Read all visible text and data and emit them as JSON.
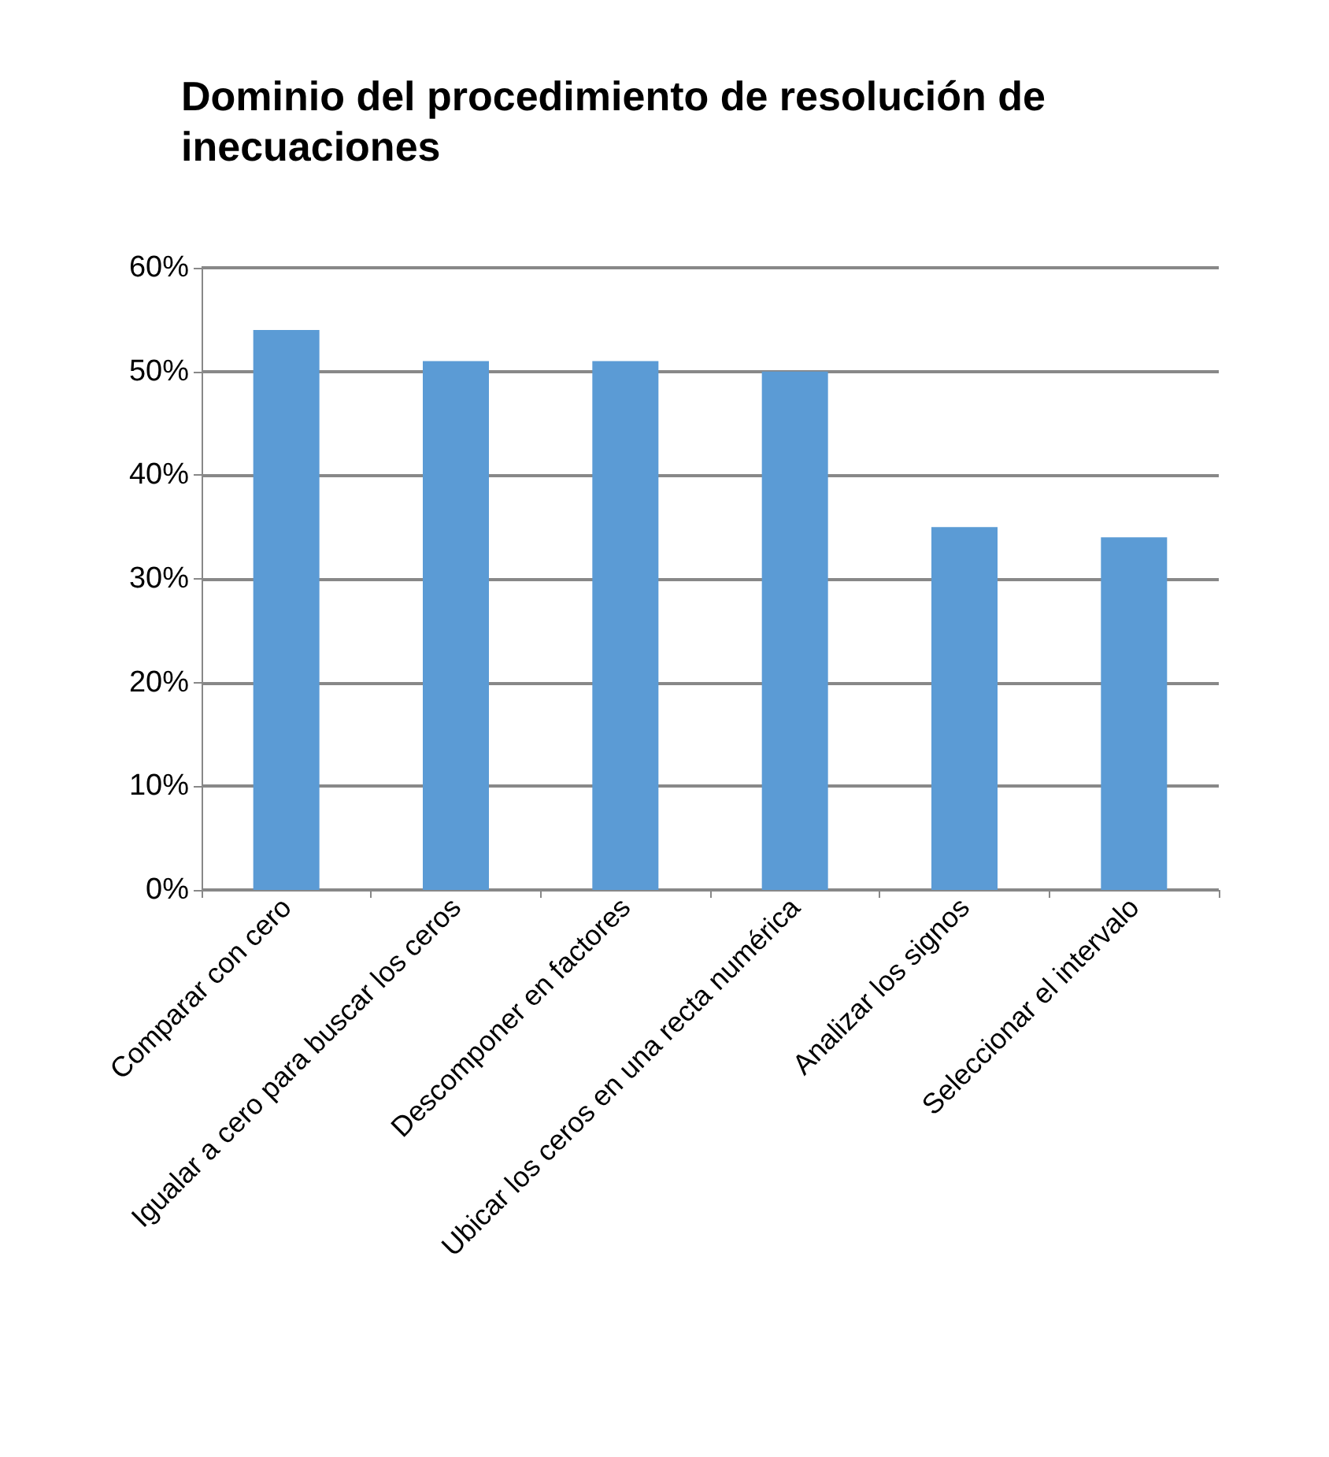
{
  "chart_data": {
    "type": "bar",
    "title": "Dominio del procedimiento de resolución de inecuaciones",
    "categories": [
      "Comparar con cero",
      "Igualar a cero para buscar los ceros",
      "Descomponer en factores",
      "Ubicar los ceros en una recta numérica",
      "Analizar los signos",
      "Seleccionar el intervalo"
    ],
    "values": [
      54,
      51,
      51,
      50,
      35,
      34
    ],
    "color": "#5b9bd5",
    "ylim": [
      0,
      60
    ],
    "yticks": [
      {
        "value": 0,
        "label": "0%"
      },
      {
        "value": 10,
        "label": "10%"
      },
      {
        "value": 20,
        "label": "20%"
      },
      {
        "value": 30,
        "label": "30%"
      },
      {
        "value": 40,
        "label": "40%"
      },
      {
        "value": 50,
        "label": "50%"
      },
      {
        "value": 60,
        "label": "60%"
      }
    ],
    "grid": true
  }
}
